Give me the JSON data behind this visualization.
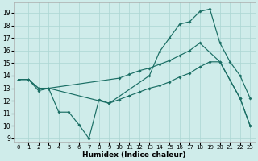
{
  "background_color": "#cfecea",
  "grid_color": "#aed8d4",
  "line_color": "#1a6e64",
  "xlabel": "Humidex (Indice chaleur)",
  "xlim": [
    -0.5,
    23.5
  ],
  "ylim": [
    8.7,
    19.8
  ],
  "xticks": [
    0,
    1,
    2,
    3,
    4,
    5,
    6,
    7,
    8,
    9,
    10,
    11,
    12,
    13,
    14,
    15,
    16,
    17,
    18,
    19,
    20,
    21,
    22,
    23
  ],
  "yticks": [
    9,
    10,
    11,
    12,
    13,
    14,
    15,
    16,
    17,
    18,
    19
  ],
  "curve1_x": [
    0,
    1,
    2,
    3,
    4,
    5,
    6,
    7,
    8,
    9,
    13,
    14,
    15,
    16,
    17,
    18,
    19,
    20,
    21,
    22,
    23
  ],
  "curve1_y": [
    13.7,
    13.7,
    12.8,
    13.0,
    11.1,
    11.1,
    10.1,
    9.0,
    12.1,
    11.8,
    14.0,
    15.9,
    17.0,
    18.1,
    18.3,
    19.1,
    19.3,
    16.6,
    15.1,
    14.0,
    12.2
  ],
  "curve2_x": [
    0,
    1,
    2,
    3,
    10,
    11,
    12,
    13,
    14,
    15,
    16,
    17,
    18,
    20,
    22,
    23
  ],
  "curve2_y": [
    13.7,
    13.7,
    13.0,
    13.0,
    13.8,
    14.1,
    14.4,
    14.6,
    14.9,
    15.2,
    15.6,
    16.0,
    16.6,
    15.1,
    12.2,
    10.0
  ],
  "curve3_x": [
    0,
    1,
    2,
    3,
    9,
    10,
    11,
    12,
    13,
    14,
    15,
    16,
    17,
    18,
    19,
    20,
    22,
    23
  ],
  "curve3_y": [
    13.7,
    13.7,
    13.0,
    13.0,
    11.8,
    12.1,
    12.4,
    12.7,
    13.0,
    13.2,
    13.5,
    13.9,
    14.2,
    14.7,
    15.1,
    15.1,
    12.2,
    10.0
  ]
}
